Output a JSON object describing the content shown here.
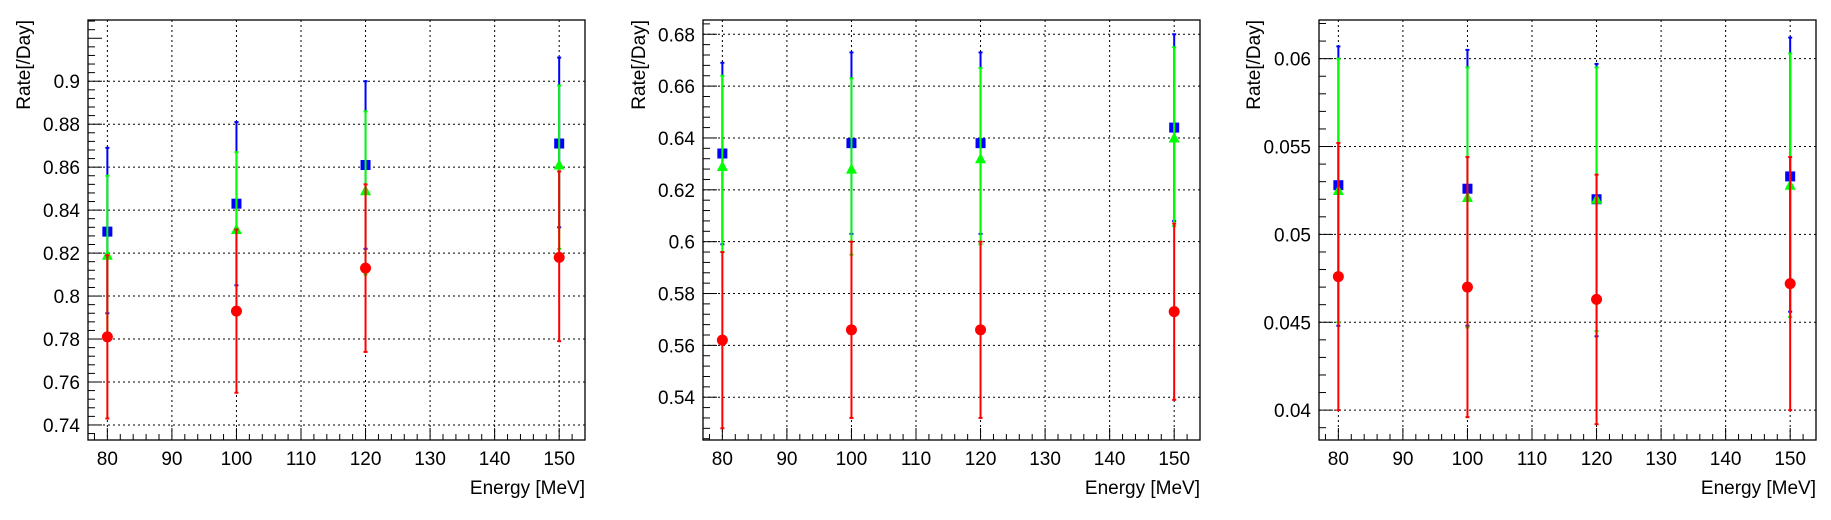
{
  "colors": {
    "series_a": "#0000ff",
    "series_b": "#00ff00",
    "series_c": "#ff0000",
    "grid": "#000000"
  },
  "chart_data": [
    {
      "type": "scatter",
      "xlabel": "Energy [MeV]",
      "ylabel": "Rate[/Day]",
      "grid": true,
      "xlim": [
        77,
        154
      ],
      "ylim": [
        0.733,
        0.9285
      ],
      "xticks": [
        80,
        90,
        100,
        110,
        120,
        130,
        140,
        150
      ],
      "xtick_labels": [
        "80",
        "90",
        "100",
        "110",
        "120",
        "130",
        "140",
        "150"
      ],
      "yticks": [
        0.74,
        0.76,
        0.78,
        0.8,
        0.82,
        0.84,
        0.86,
        0.88,
        0.9
      ],
      "ytick_labels": [
        "0.74",
        "0.76",
        "0.78",
        "0.8",
        "0.82",
        "0.84",
        "0.86",
        "0.88",
        "0.9"
      ],
      "series": [
        {
          "marker": "square",
          "color": "#0000ff",
          "x": [
            80,
            100,
            120,
            150
          ],
          "y": [
            0.83,
            0.843,
            0.861,
            0.871
          ],
          "err_lo": [
            0.038,
            0.038,
            0.039,
            0.039
          ],
          "err_hi": [
            0.039,
            0.038,
            0.039,
            0.04
          ]
        },
        {
          "marker": "triangle",
          "color": "#00ff00",
          "x": [
            80,
            100,
            120,
            150
          ],
          "y": [
            0.819,
            0.831,
            0.849,
            0.861
          ],
          "err_lo": [
            0.037,
            0.037,
            0.039,
            0.039
          ],
          "err_hi": [
            0.037,
            0.036,
            0.037,
            0.037
          ]
        },
        {
          "marker": "circle",
          "color": "#ff0000",
          "x": [
            80,
            100,
            120,
            150
          ],
          "y": [
            0.781,
            0.793,
            0.813,
            0.818
          ],
          "err_lo": [
            0.038,
            0.038,
            0.039,
            0.039
          ],
          "err_hi": [
            0.038,
            0.038,
            0.039,
            0.04
          ]
        }
      ]
    },
    {
      "type": "scatter",
      "xlabel": "Energy [MeV]",
      "ylabel": "Rate[/Day]",
      "grid": true,
      "xlim": [
        77,
        154
      ],
      "ylim": [
        0.5235,
        0.6855
      ],
      "xticks": [
        80,
        90,
        100,
        110,
        120,
        130,
        140,
        150
      ],
      "xtick_labels": [
        "80",
        "90",
        "100",
        "110",
        "120",
        "130",
        "140",
        "150"
      ],
      "yticks": [
        0.54,
        0.56,
        0.58,
        0.6,
        0.62,
        0.64,
        0.66,
        0.68
      ],
      "ytick_labels": [
        "0.54",
        "0.56",
        "0.58",
        "0.6",
        "0.62",
        "0.64",
        "0.66",
        "0.68"
      ],
      "series": [
        {
          "marker": "square",
          "color": "#0000ff",
          "x": [
            80,
            100,
            120,
            150
          ],
          "y": [
            0.634,
            0.638,
            0.638,
            0.644
          ],
          "err_lo": [
            0.035,
            0.035,
            0.035,
            0.036
          ],
          "err_hi": [
            0.035,
            0.035,
            0.035,
            0.036
          ]
        },
        {
          "marker": "triangle",
          "color": "#00ff00",
          "x": [
            80,
            100,
            120,
            150
          ],
          "y": [
            0.629,
            0.628,
            0.632,
            0.64
          ],
          "err_lo": [
            0.033,
            0.033,
            0.033,
            0.034
          ],
          "err_hi": [
            0.035,
            0.035,
            0.035,
            0.035
          ]
        },
        {
          "marker": "circle",
          "color": "#ff0000",
          "x": [
            80,
            100,
            120,
            150
          ],
          "y": [
            0.562,
            0.566,
            0.566,
            0.573
          ],
          "err_lo": [
            0.034,
            0.034,
            0.034,
            0.034
          ],
          "err_hi": [
            0.034,
            0.034,
            0.034,
            0.034
          ]
        }
      ]
    },
    {
      "type": "scatter",
      "xlabel": "Energy [MeV]",
      "ylabel": "Rate[/Day]",
      "grid": true,
      "xlim": [
        77,
        154
      ],
      "ylim": [
        0.0383,
        0.0622
      ],
      "xticks": [
        80,
        90,
        100,
        110,
        120,
        130,
        140,
        150
      ],
      "xtick_labels": [
        "80",
        "90",
        "100",
        "110",
        "120",
        "130",
        "140",
        "150"
      ],
      "yticks": [
        0.04,
        0.045,
        0.05,
        0.055,
        0.06
      ],
      "ytick_labels": [
        "0.04",
        "0.045",
        "0.05",
        "0.055",
        "0.06"
      ],
      "series": [
        {
          "marker": "square",
          "color": "#0000ff",
          "x": [
            80,
            100,
            120,
            150
          ],
          "y": [
            0.0528,
            0.0526,
            0.052,
            0.0533
          ],
          "err_lo": [
            0.008,
            0.0078,
            0.0078,
            0.0077
          ],
          "err_hi": [
            0.0079,
            0.0079,
            0.0077,
            0.0079
          ]
        },
        {
          "marker": "triangle",
          "color": "#00ff00",
          "x": [
            80,
            100,
            120,
            150
          ],
          "y": [
            0.0525,
            0.0521,
            0.052,
            0.0528
          ],
          "err_lo": [
            0.0075,
            0.0074,
            0.0075,
            0.0075
          ],
          "err_hi": [
            0.0075,
            0.0074,
            0.0075,
            0.0075
          ]
        },
        {
          "marker": "circle",
          "color": "#ff0000",
          "x": [
            80,
            100,
            120,
            150
          ],
          "y": [
            0.0476,
            0.047,
            0.0463,
            0.0472
          ],
          "err_lo": [
            0.0076,
            0.0074,
            0.0071,
            0.0072
          ],
          "err_hi": [
            0.0076,
            0.0074,
            0.0071,
            0.0072
          ]
        }
      ]
    }
  ]
}
